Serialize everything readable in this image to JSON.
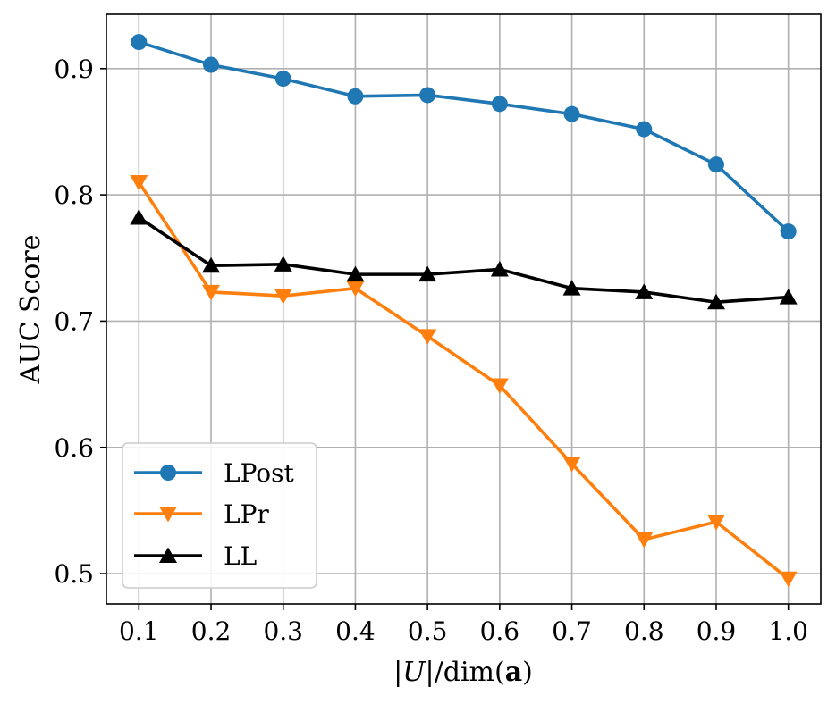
{
  "chart_data": {
    "type": "line",
    "xlabel": "|U|/dim(a)",
    "ylabel": "AUC Score",
    "x": [
      0.1,
      0.2,
      0.3,
      0.4,
      0.5,
      0.6,
      0.7,
      0.8,
      0.9,
      1.0
    ],
    "x_tick_labels": [
      "0.1",
      "0.2",
      "0.3",
      "0.4",
      "0.5",
      "0.6",
      "0.7",
      "0.8",
      "0.9",
      "1.0"
    ],
    "y_ticks": [
      0.5,
      0.6,
      0.7,
      0.8,
      0.9
    ],
    "y_tick_labels": [
      "0.5",
      "0.6",
      "0.7",
      "0.8",
      "0.9"
    ],
    "xlim": [
      0.055,
      1.045
    ],
    "ylim": [
      0.476,
      0.943
    ],
    "grid": true,
    "legend_position": "bottom-left",
    "series": [
      {
        "name": "LPost",
        "color": "#1f77b4",
        "marker": "circle",
        "values": [
          0.921,
          0.903,
          0.892,
          0.878,
          0.879,
          0.872,
          0.864,
          0.852,
          0.824,
          0.771
        ]
      },
      {
        "name": "LPr",
        "color": "#ff7f0e",
        "marker": "triangle-down",
        "values": [
          0.81,
          0.723,
          0.72,
          0.726,
          0.688,
          0.649,
          0.587,
          0.527,
          0.541,
          0.496
        ]
      },
      {
        "name": "LL",
        "color": "#000000",
        "marker": "triangle-up",
        "values": [
          0.782,
          0.744,
          0.745,
          0.737,
          0.737,
          0.741,
          0.726,
          0.723,
          0.715,
          0.719
        ]
      }
    ]
  }
}
